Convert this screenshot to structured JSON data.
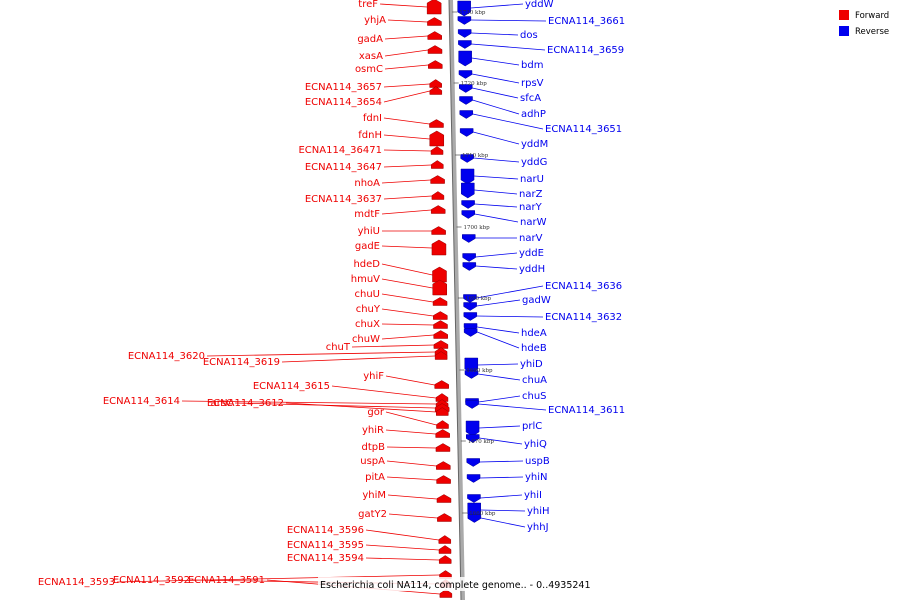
{
  "caption": "Escherichia coli NA114, complete genome.. - 0..4935241",
  "legend": {
    "forward_label": "Forward",
    "reverse_label": "Reverse",
    "forward_color": "#ee0000",
    "reverse_color": "#0000ee"
  },
  "ticks": [
    "1730 kbp",
    "1720 kbp",
    "1710 kbp",
    "1700 kbp",
    "1690 kbp",
    "1680 kbp",
    "1670 kbp",
    "1660 kbp"
  ],
  "forward_genes": [
    "treF",
    "yhjA",
    "gadA",
    "xasA",
    "osmC",
    "ECNA114_3657",
    "ECNA114_3654",
    "fdnI",
    "fdnH",
    "ECNA114_36471",
    "ECNA114_3647",
    "nhoA",
    "ECNA114_3637",
    "mdtF",
    "yhiU",
    "gadE",
    "hdeD",
    "hmuV",
    "chuU",
    "chuY",
    "chuX",
    "chuW",
    "chuT",
    "ECNA114_3620",
    "ECNA114_3619",
    "yhiF",
    "ECNA114_3615",
    "ECNA114_3614",
    "arsC",
    "ECNA114_3612",
    "gor",
    "yhiR",
    "dtpB",
    "uspA",
    "pitA",
    "yhiM",
    "gatY2",
    "ECNA114_3596",
    "ECNA114_3595",
    "ECNA114_3594",
    "ECNA114_3593",
    "ECNA114_3592",
    "ECNA114_3591"
  ],
  "reverse_genes": [
    "yddW",
    "ECNA114_3661",
    "dos",
    "ECNA114_3659",
    "bdm",
    "rpsV",
    "sfcA",
    "adhP",
    "ECNA114_3651",
    "yddM",
    "yddG",
    "narU",
    "narZ",
    "narY",
    "narW",
    "narV",
    "yddE",
    "yddH",
    "ECNA114_3636",
    "gadW",
    "ECNA114_3632",
    "hdeA",
    "hdeB",
    "yhiD",
    "chuA",
    "chuS",
    "ECNA114_3611",
    "prlC",
    "yhiQ",
    "uspB",
    "yhiN",
    "yhiI",
    "yhiH",
    "yhhJ"
  ]
}
